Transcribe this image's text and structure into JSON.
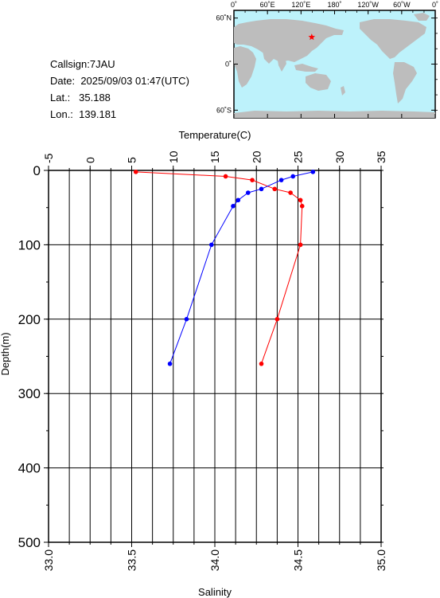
{
  "station": {
    "callsign_label": "Callsign:",
    "callsign": "7JAU",
    "date_label": "Date:",
    "date": "2025/09/03 01:47(UTC)",
    "lat_label": "Lat.:",
    "lat": "35.188",
    "lon_label": "Lon.:",
    "lon": "139.181"
  },
  "map": {
    "top_ticks": [
      "0˚",
      "60˚E",
      "120˚E",
      "180˚",
      "120˚W",
      "60˚W",
      "0˚"
    ],
    "lat_ticks": [
      "60˚N",
      "0˚",
      "60˚S"
    ],
    "ocean_color": "#bdf2fb",
    "land_color": "#bdbdbd",
    "marker_color": "#ff0000",
    "marker_lon": 139.181,
    "marker_lat": 35.188
  },
  "chart_data": {
    "type": "line",
    "temperature_axis": {
      "label": "Temperature(C)",
      "range": [
        -5,
        35
      ],
      "ticks": [
        "-5",
        "0",
        "5",
        "10",
        "15",
        "20",
        "25",
        "30",
        "35"
      ],
      "color": "#ff0000"
    },
    "salinity_axis": {
      "label": "Salinity",
      "range": [
        33.0,
        35.0
      ],
      "ticks": [
        "33.0",
        "33.5",
        "34.0",
        "34.5",
        "35.0"
      ],
      "color": "#0000ff"
    },
    "depth_axis": {
      "label": "Depth(m)",
      "range": [
        0,
        500
      ],
      "ticks": [
        "0",
        "100",
        "200",
        "300",
        "400",
        "500"
      ]
    },
    "grid": true,
    "series": [
      {
        "quantity": "temperature",
        "color": "#ff0000",
        "points": [
          {
            "depth": 2,
            "value": 5.5
          },
          {
            "depth": 8,
            "value": 16.3
          },
          {
            "depth": 13,
            "value": 19.5
          },
          {
            "depth": 25,
            "value": 22.2
          },
          {
            "depth": 30,
            "value": 24.1
          },
          {
            "depth": 40,
            "value": 25.3
          },
          {
            "depth": 48,
            "value": 25.5
          },
          {
            "depth": 100,
            "value": 25.3
          },
          {
            "depth": 200,
            "value": 22.5
          },
          {
            "depth": 260,
            "value": 20.6
          }
        ]
      },
      {
        "quantity": "salinity",
        "color": "#0000ff",
        "points": [
          {
            "depth": 2,
            "value": 34.59
          },
          {
            "depth": 8,
            "value": 34.47
          },
          {
            "depth": 13,
            "value": 34.4
          },
          {
            "depth": 25,
            "value": 34.28
          },
          {
            "depth": 30,
            "value": 34.2
          },
          {
            "depth": 40,
            "value": 34.14
          },
          {
            "depth": 48,
            "value": 34.11
          },
          {
            "depth": 100,
            "value": 33.98
          },
          {
            "depth": 200,
            "value": 33.83
          },
          {
            "depth": 260,
            "value": 33.73
          }
        ]
      }
    ]
  }
}
